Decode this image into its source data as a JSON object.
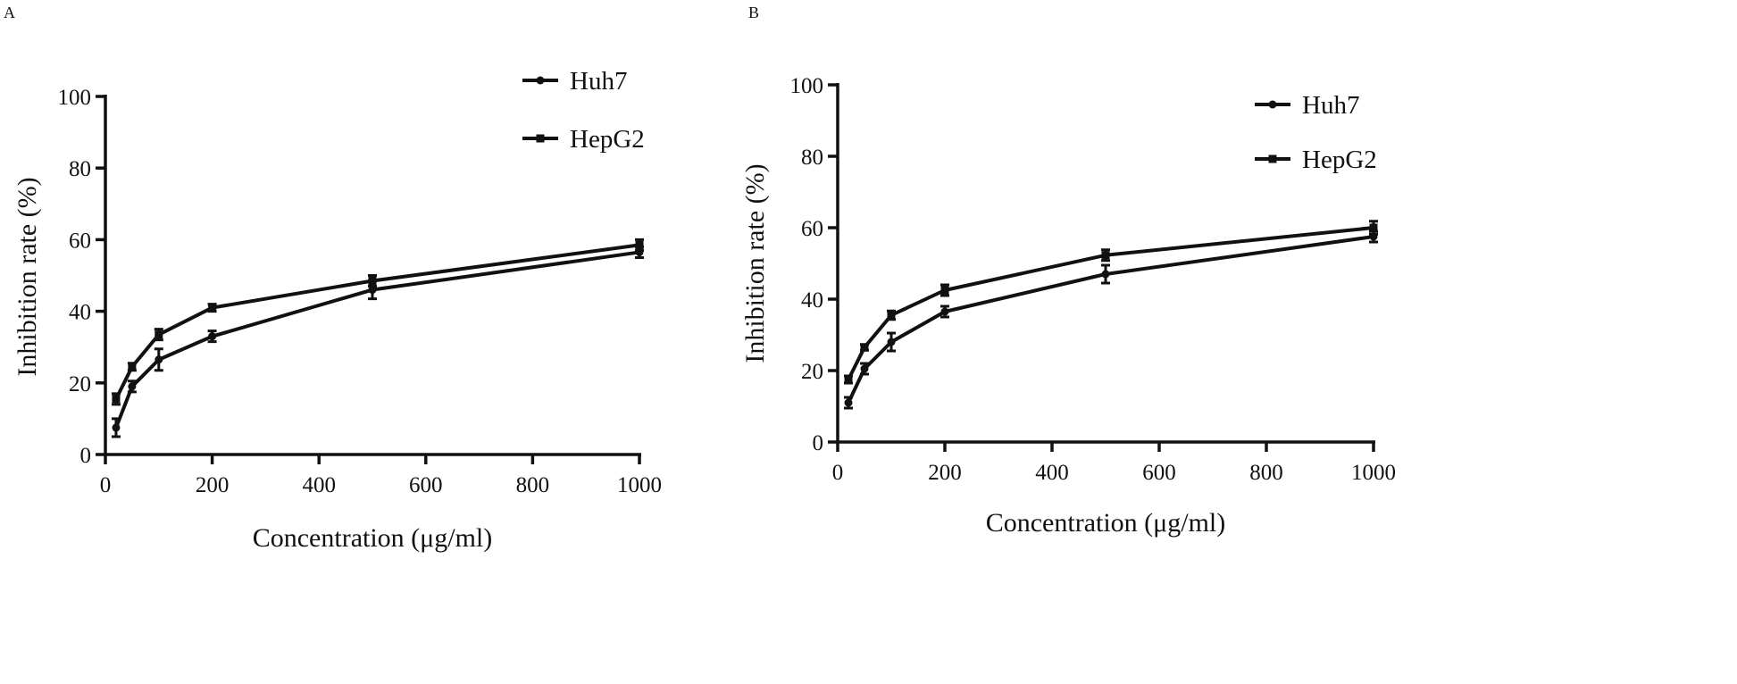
{
  "chart_data": [
    {
      "panel_label": "A",
      "type": "line",
      "xlabel": "Concentration (μg/ml)",
      "ylabel": "Inhibition rate (%)",
      "xlim": [
        0,
        1000
      ],
      "ylim": [
        0,
        100
      ],
      "xticks": [
        0,
        200,
        400,
        600,
        800,
        1000
      ],
      "yticks": [
        0,
        20,
        40,
        60,
        80,
        100
      ],
      "grid": false,
      "legend_position": "top-right",
      "x": [
        20,
        50,
        100,
        200,
        500,
        1000
      ],
      "series": [
        {
          "name": "Huh7",
          "marker": "circle",
          "values": [
            7.5,
            19,
            26.5,
            33,
            46,
            56.5
          ],
          "errors": [
            2.5,
            1.5,
            3,
            1.5,
            2.5,
            1.5
          ]
        },
        {
          "name": "HepG2",
          "marker": "square",
          "values": [
            15.5,
            24.5,
            33.5,
            41,
            48.5,
            58.5
          ],
          "errors": [
            1.5,
            1,
            1.5,
            1,
            1.5,
            1.5
          ]
        }
      ]
    },
    {
      "panel_label": "B",
      "type": "line",
      "xlabel": "Concentration (μg/ml)",
      "ylabel": "Inhibition rate (%)",
      "xlim": [
        0,
        1000
      ],
      "ylim": [
        0,
        100
      ],
      "xticks": [
        0,
        200,
        400,
        600,
        800,
        1000
      ],
      "yticks": [
        0,
        20,
        40,
        60,
        80,
        100
      ],
      "grid": false,
      "legend_position": "top-right",
      "x": [
        20,
        50,
        100,
        200,
        500,
        1000
      ],
      "series": [
        {
          "name": "Huh7",
          "marker": "circle",
          "values": [
            11,
            20.5,
            28,
            36.5,
            47,
            57.5
          ],
          "errors": [
            1.5,
            1.5,
            2.5,
            1.5,
            2.5,
            1.5
          ]
        },
        {
          "name": "HepG2",
          "marker": "square",
          "values": [
            17.5,
            26.5,
            35.5,
            42.5,
            52.3,
            60
          ],
          "errors": [
            1,
            0.8,
            1.2,
            1.5,
            1.5,
            1.8
          ]
        }
      ]
    }
  ]
}
